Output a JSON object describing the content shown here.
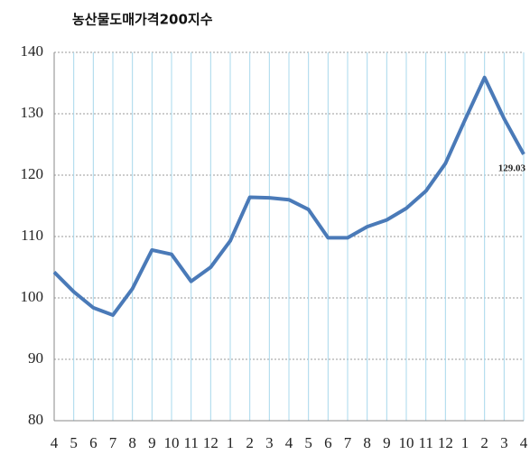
{
  "chart_data": {
    "type": "line",
    "title": "농산물도매가격200지수",
    "categories": [
      "4",
      "5",
      "6",
      "7",
      "8",
      "9",
      "10",
      "11",
      "12",
      "1",
      "2",
      "3",
      "4",
      "5",
      "6",
      "7",
      "8",
      "9",
      "10",
      "11",
      "12",
      "1",
      "2",
      "3",
      "4"
    ],
    "series": [
      {
        "name": "농산물도매가격200지수",
        "color": "#4a7ab8",
        "values": [
          104.2,
          101,
          98.4,
          97.2,
          101.5,
          107.8,
          107.1,
          102.7,
          105,
          109.3,
          116.4,
          116.3,
          116,
          114.4,
          109.8,
          109.8,
          111.6,
          112.7,
          114.6,
          117.4,
          121.9,
          129,
          135.9,
          129.2,
          123.4
        ]
      }
    ],
    "annotation": "129.03",
    "ylim": [
      80,
      140
    ],
    "yticks": [
      80,
      90,
      100,
      110,
      120,
      130,
      140
    ],
    "grid": true
  }
}
